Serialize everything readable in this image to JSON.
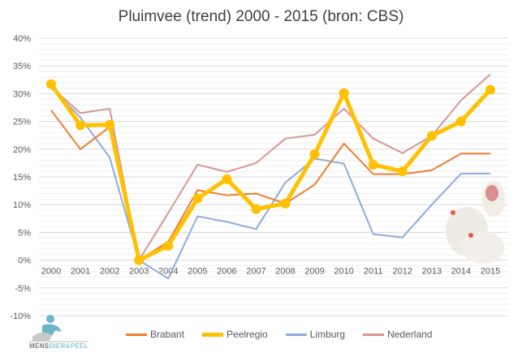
{
  "chart_data": {
    "type": "line",
    "title": "Pluimvee (trend) 2000 - 2015 (bron: CBS)",
    "xlabel": "",
    "ylabel": "",
    "x": [
      "2000",
      "2001",
      "2002",
      "2003",
      "2004",
      "2005",
      "2006",
      "2007",
      "2008",
      "2009",
      "2010",
      "2011",
      "2012",
      "2013",
      "2014",
      "2015"
    ],
    "ylim": [
      -10,
      40
    ],
    "yticks": [
      -10,
      -5,
      0,
      5,
      10,
      15,
      20,
      25,
      30,
      35,
      40
    ],
    "ytick_labels": [
      "-10%",
      "-5%",
      "0%",
      "5%",
      "10%",
      "15%",
      "20%",
      "25%",
      "30%",
      "35%",
      "40%"
    ],
    "grid": true,
    "legend_position": "bottom",
    "series": [
      {
        "name": "Brabant",
        "color": "#ED7D31",
        "width": 2,
        "markers": false,
        "values": [
          27.0,
          20.0,
          24.0,
          0,
          3.3,
          12.6,
          11.7,
          12.0,
          10.2,
          13.6,
          21.0,
          15.5,
          15.5,
          16.2,
          19.2,
          19.2
        ]
      },
      {
        "name": "Peelregio",
        "color": "#FFC000",
        "width": 5,
        "markers": true,
        "values": [
          31.7,
          24.3,
          24.4,
          0,
          2.6,
          11.1,
          14.6,
          9.2,
          10.2,
          19.1,
          30.1,
          17.2,
          16.0,
          22.4,
          25.0,
          30.7
        ]
      },
      {
        "name": "Limburg",
        "color": "#8FAADC",
        "width": 2,
        "markers": false,
        "values": [
          31.1,
          25.7,
          18.5,
          0,
          -3.3,
          7.9,
          6.9,
          5.6,
          14.0,
          18.3,
          17.4,
          4.7,
          4.1,
          10.0,
          15.6,
          15.6
        ]
      },
      {
        "name": "Nederland",
        "color": "#D99594",
        "width": 2,
        "markers": false,
        "values": [
          31.2,
          26.5,
          27.3,
          0,
          8.5,
          17.2,
          15.9,
          17.5,
          21.9,
          22.6,
          27.3,
          21.9,
          19.3,
          22.4,
          28.8,
          33.5
        ]
      }
    ]
  },
  "logo": {
    "text_a": "MENS",
    "text_b": "DIER&PEEL"
  }
}
